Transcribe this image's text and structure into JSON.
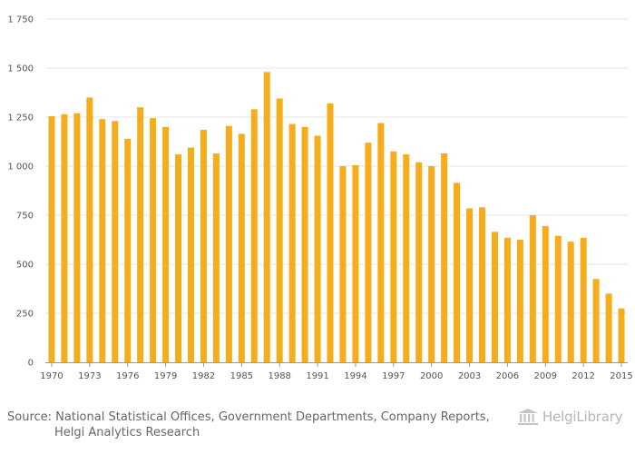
{
  "chart_data": {
    "type": "bar",
    "title": "",
    "xlabel": "",
    "ylabel": "",
    "ylim": [
      0,
      1750
    ],
    "yticks": [
      0,
      250,
      500,
      750,
      1000,
      1250,
      1500,
      1750
    ],
    "ytick_labels": [
      "0",
      "250",
      "500",
      "750",
      "1 000",
      "1 250",
      "1 500",
      "1 750"
    ],
    "xtick_labels": [
      "1970",
      "1973",
      "1976",
      "1979",
      "1982",
      "1985",
      "1988",
      "1991",
      "1994",
      "1997",
      "2000",
      "2003",
      "2006",
      "2009",
      "2012",
      "2015"
    ],
    "grid": true,
    "bar_color": "#f5ad1b",
    "categories": [
      "1970",
      "1971",
      "1972",
      "1973",
      "1974",
      "1975",
      "1976",
      "1977",
      "1978",
      "1979",
      "1980",
      "1981",
      "1982",
      "1983",
      "1984",
      "1985",
      "1986",
      "1987",
      "1988",
      "1989",
      "1990",
      "1991",
      "1992",
      "1993",
      "1994",
      "1995",
      "1996",
      "1997",
      "1998",
      "1999",
      "2000",
      "2001",
      "2002",
      "2003",
      "2004",
      "2005",
      "2006",
      "2007",
      "2008",
      "2009",
      "2010",
      "2011",
      "2012",
      "2013",
      "2014",
      "2015"
    ],
    "values": [
      1255,
      1265,
      1270,
      1350,
      1240,
      1230,
      1140,
      1300,
      1245,
      1200,
      1060,
      1095,
      1185,
      1065,
      1205,
      1165,
      1290,
      1480,
      1345,
      1215,
      1200,
      1155,
      1320,
      1000,
      1005,
      1120,
      1220,
      1075,
      1060,
      1020,
      1000,
      1065,
      915,
      785,
      790,
      665,
      635,
      625,
      750,
      695,
      645,
      615,
      635,
      425,
      350,
      275
    ]
  },
  "source": {
    "line1": "Source: National Statistical Offices, Government Departments, Company Reports,",
    "line2": "Helgi Analytics Research"
  },
  "logo": {
    "text": "HelgiLibrary",
    "icon": "library-building-icon"
  }
}
